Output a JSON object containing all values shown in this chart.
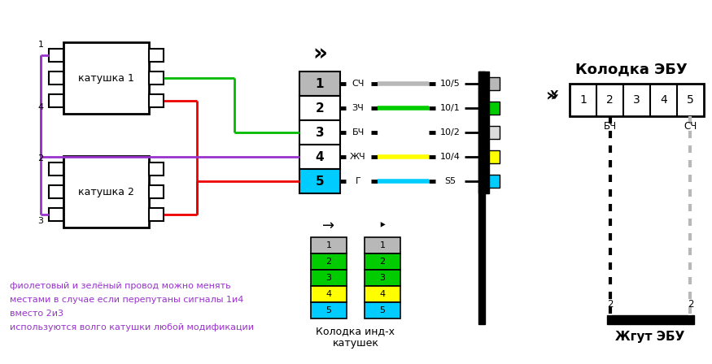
{
  "bg": "#ffffff",
  "coil1_text": "катушка 1",
  "coil2_text": "катушка 2",
  "connector_label1": "Колодка инд-х",
  "connector_label2": "катушек",
  "ebu_title": "Колодка ЭБУ",
  "harness_title": "Жгут ЭБУ",
  "note": "фиолетовый и зелёный провод можно менять\nместами в случае если перепутаны сигналы 1и4\nвместо 2и3\nиспользуются волго катушки любой модификации",
  "note_color": "#9933cc",
  "pin_colors_main": [
    "#b8b8b8",
    "#ffffff",
    "#ffffff",
    "#ffffff",
    "#00ccff"
  ],
  "wire_labels": [
    "СЧ",
    "ЗЧ",
    "БЧ",
    "ЖЧ",
    "Г"
  ],
  "wire_colors": [
    "#b8b8b8",
    "#00cc00",
    "#ffffff",
    "#ffff00",
    "#00ccff"
  ],
  "wire_nums": [
    "10/5",
    "10/1",
    "10/2",
    "10/4",
    "S5"
  ],
  "sc_colors": [
    "#b8b8b8",
    "#00cc00",
    "#00cc00",
    "#ffff00",
    "#00ccff"
  ],
  "red": "#ee0000",
  "green": "#00bb00",
  "purple": "#9933cc",
  "cyan": "#00ccff",
  "yellow": "#ffff00",
  "gray": "#b8b8b8",
  "black": "#000000",
  "white": "#ffffff"
}
